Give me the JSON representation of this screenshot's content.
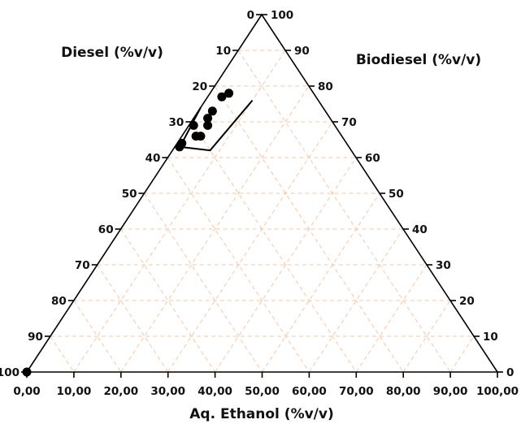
{
  "chart_data": {
    "type": "scatter",
    "subtype": "ternary",
    "axes": {
      "left": {
        "label": "Diesel (%v/v)",
        "ticks": [
          "0",
          "10",
          "20",
          "30",
          "40",
          "50",
          "60",
          "70",
          "80",
          "90",
          "100"
        ]
      },
      "right": {
        "label": "Biodiesel (%v/v)",
        "ticks": [
          "100",
          "90",
          "80",
          "70",
          "60",
          "50",
          "40",
          "30",
          "20",
          "10",
          "0"
        ]
      },
      "bottom": {
        "label": "Aq. Ethanol (%v/v)",
        "ticks": [
          "0,00",
          "10,00",
          "20,00",
          "30,00",
          "40,00",
          "50,00",
          "60,00",
          "70,00",
          "80,00",
          "90,00",
          "100,00"
        ]
      }
    },
    "grid": true,
    "grid_color": "#f4c7a4",
    "frame_color": "#000000",
    "point_color": "#000000",
    "units": "%v/v",
    "points": [
      {
        "diesel": 18,
        "biodiesel": 78,
        "ethanol": 4
      },
      {
        "diesel": 20,
        "biodiesel": 77,
        "ethanol": 3
      },
      {
        "diesel": 24,
        "biodiesel": 73,
        "ethanol": 3
      },
      {
        "diesel": 26,
        "biodiesel": 71,
        "ethanol": 3
      },
      {
        "diesel": 27,
        "biodiesel": 69,
        "ethanol": 4
      },
      {
        "diesel": 30,
        "biodiesel": 69,
        "ethanol": 1
      },
      {
        "diesel": 30,
        "biodiesel": 66,
        "ethanol": 4
      },
      {
        "diesel": 31,
        "biodiesel": 66,
        "ethanol": 3
      },
      {
        "diesel": 35,
        "biodiesel": 64,
        "ethanol": 1
      },
      {
        "diesel": 36,
        "biodiesel": 63,
        "ethanol": 1
      },
      {
        "diesel": 100,
        "biodiesel": 0,
        "ethanol": 0
      }
    ],
    "boundary_line": [
      {
        "diesel": 26,
        "biodiesel": 74,
        "ethanol": 0
      },
      {
        "diesel": 35,
        "biodiesel": 64,
        "ethanol": 1
      },
      {
        "diesel": 36,
        "biodiesel": 63,
        "ethanol": 1
      },
      {
        "diesel": 30,
        "biodiesel": 62,
        "ethanol": 8
      },
      {
        "diesel": 14,
        "biodiesel": 76,
        "ethanol": 10
      }
    ]
  }
}
